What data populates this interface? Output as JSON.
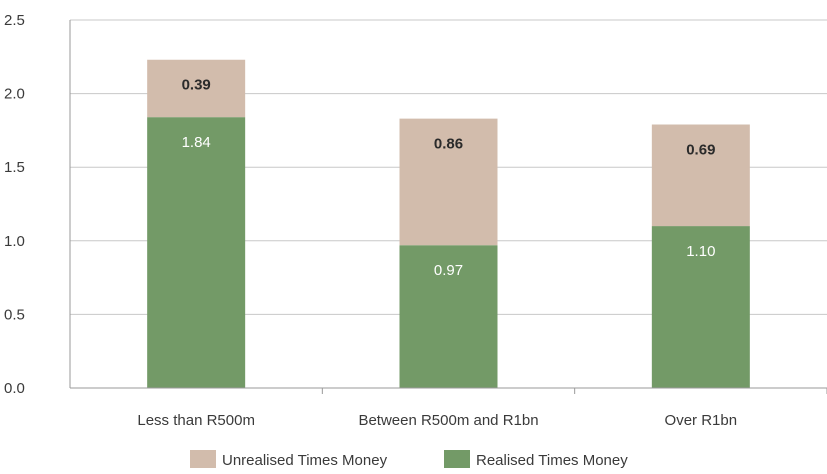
{
  "chart_data": {
    "type": "bar",
    "stacked": true,
    "categories": [
      "Less than R500m",
      "Between R500m and R1bn",
      "Over R1bn"
    ],
    "series": [
      {
        "name": "Realised Times Money",
        "values": [
          1.84,
          0.97,
          1.1
        ],
        "labels": [
          "1.84",
          "0.97",
          "1.10"
        ],
        "color": "#739a67"
      },
      {
        "name": "Unrealised Times Money",
        "values": [
          0.39,
          0.86,
          0.69
        ],
        "labels": [
          "0.39",
          "0.86",
          "0.69"
        ],
        "color": "#d2bcac"
      }
    ],
    "ylim": [
      0,
      2.5
    ],
    "yticks": [
      "0.0",
      "0.5",
      "1.0",
      "1.5",
      "2.0",
      "2.5"
    ],
    "ytick_values": [
      0,
      0.5,
      1.0,
      1.5,
      2.0,
      2.5
    ],
    "grid": true,
    "legend": {
      "placement": "bottom",
      "order": [
        "Unrealised Times Money",
        "Realised Times Money"
      ]
    }
  }
}
